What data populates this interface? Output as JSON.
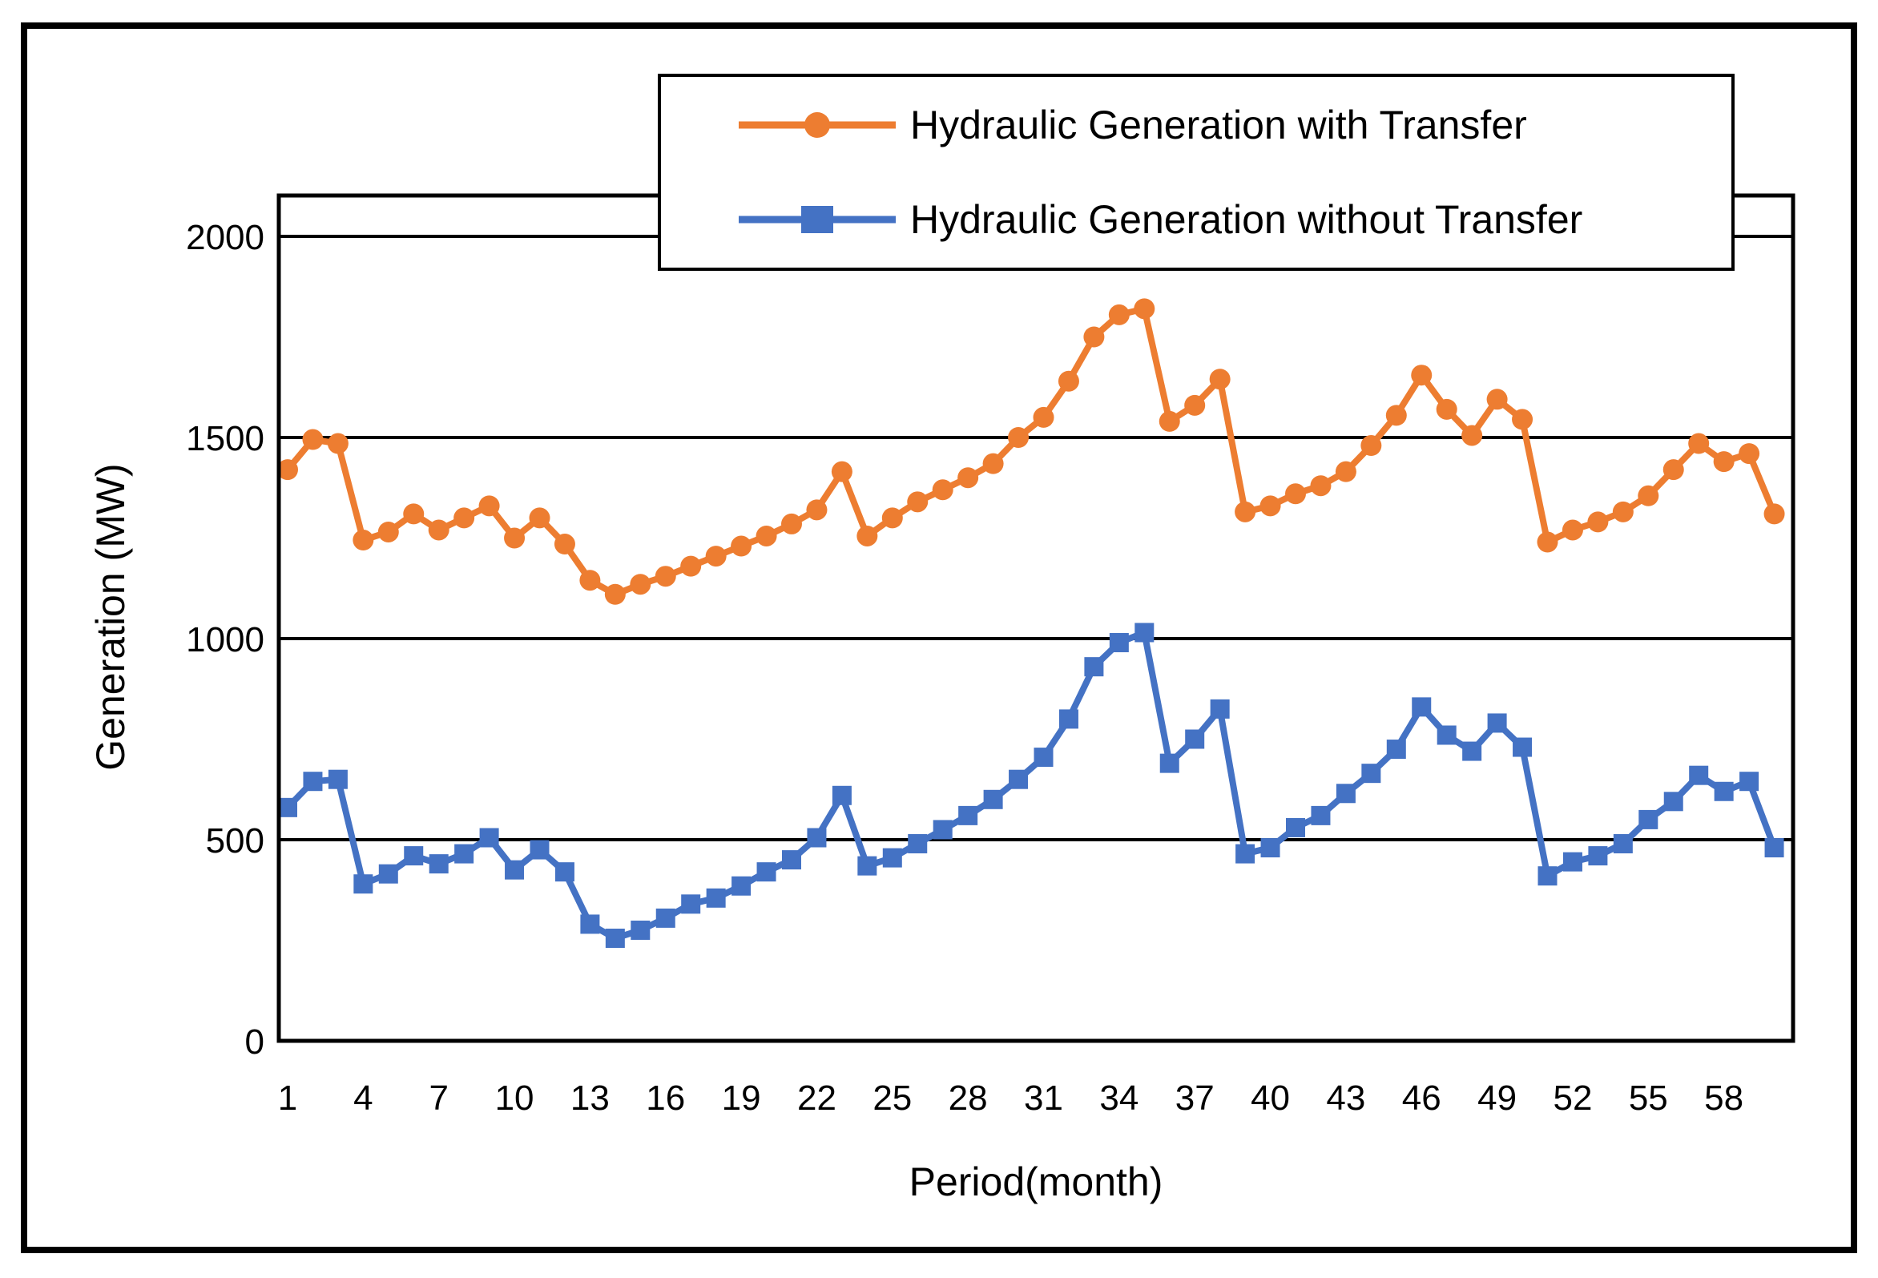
{
  "chart_data": {
    "type": "line",
    "title": "",
    "xlabel": "Period(month)",
    "ylabel": "Generation (MW)",
    "x": [
      1,
      2,
      3,
      4,
      5,
      6,
      7,
      8,
      9,
      10,
      11,
      12,
      13,
      14,
      15,
      16,
      17,
      18,
      19,
      20,
      21,
      22,
      23,
      24,
      25,
      26,
      27,
      28,
      29,
      30,
      31,
      32,
      33,
      34,
      35,
      36,
      37,
      38,
      39,
      40,
      41,
      42,
      43,
      44,
      45,
      46,
      47,
      48,
      49,
      50,
      51,
      52,
      53,
      54,
      55,
      56,
      57,
      58,
      59,
      60
    ],
    "xticks": [
      1,
      4,
      7,
      10,
      13,
      16,
      19,
      22,
      25,
      28,
      31,
      34,
      37,
      40,
      43,
      46,
      49,
      52,
      55,
      58
    ],
    "yticks": [
      0,
      500,
      1000,
      1500,
      2000
    ],
    "ylim": [
      0,
      2100
    ],
    "grid": true,
    "legend_position": "top-right",
    "series": [
      {
        "name": "Hydraulic Generation with Transfer",
        "color": "#ED7D31",
        "marker": "circle",
        "values": [
          1420,
          1495,
          1485,
          1245,
          1265,
          1310,
          1270,
          1300,
          1330,
          1250,
          1300,
          1235,
          1145,
          1110,
          1135,
          1155,
          1180,
          1205,
          1230,
          1255,
          1285,
          1320,
          1415,
          1255,
          1300,
          1340,
          1370,
          1400,
          1435,
          1500,
          1550,
          1640,
          1750,
          1805,
          1820,
          1540,
          1580,
          1645,
          1315,
          1330,
          1360,
          1380,
          1415,
          1480,
          1555,
          1655,
          1570,
          1505,
          1595,
          1545,
          1240,
          1270,
          1290,
          1315,
          1355,
          1420,
          1485,
          1440,
          1460,
          1310
        ]
      },
      {
        "name": "Hydraulic Generation without Transfer",
        "color": "#4472C4",
        "marker": "square",
        "values": [
          580,
          645,
          650,
          390,
          415,
          460,
          440,
          465,
          505,
          425,
          475,
          420,
          290,
          255,
          275,
          305,
          340,
          355,
          385,
          420,
          450,
          505,
          610,
          435,
          455,
          490,
          525,
          560,
          600,
          650,
          705,
          800,
          930,
          990,
          1015,
          690,
          750,
          825,
          465,
          480,
          530,
          560,
          615,
          665,
          725,
          830,
          760,
          720,
          790,
          730,
          410,
          445,
          460,
          490,
          550,
          595,
          660,
          620,
          645,
          480
        ]
      }
    ]
  }
}
